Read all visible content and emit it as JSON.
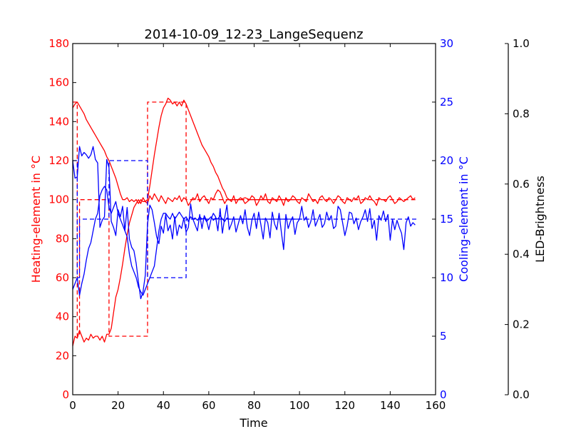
{
  "chart_data": {
    "type": "line",
    "title": "2014-10-09_12-23_LangeSequenz",
    "xlabel": "Time",
    "xlim": [
      0,
      160
    ],
    "xticks": [
      0,
      20,
      40,
      60,
      80,
      100,
      120,
      140,
      160
    ],
    "left_axis": {
      "label": "Heating-element in °C",
      "color": "#ff0000",
      "ylim": [
        0,
        180
      ],
      "ticks": [
        0,
        20,
        40,
        60,
        80,
        100,
        120,
        140,
        160,
        180
      ]
    },
    "right_axis": {
      "label": "Cooling-element in °C",
      "color": "#0000ff",
      "ylim": [
        0,
        30
      ],
      "ticks": [
        0,
        5,
        10,
        15,
        20,
        25,
        30
      ]
    },
    "led_axis": {
      "label": "LED-Brightness",
      "color": "#000000",
      "ylim": [
        0,
        1
      ],
      "ticks": [
        "0.0",
        "0.2",
        "0.4",
        "0.6",
        "0.8",
        "1.0"
      ]
    },
    "series": [
      {
        "axis": "left",
        "style": "dashed",
        "color": "#ff0000",
        "x": [
          0,
          2,
          2,
          3,
          3,
          16,
          16,
          33,
          33,
          50,
          50,
          152
        ],
        "y": [
          150,
          150,
          30,
          30,
          100,
          100,
          30,
          30,
          150,
          150,
          100,
          100
        ]
      },
      {
        "axis": "left",
        "style": "solid",
        "color": "#ff0000",
        "x": [
          0,
          1,
          2,
          3,
          4,
          5,
          6,
          7,
          8,
          9,
          10,
          11,
          12,
          13,
          14,
          15,
          16,
          17,
          18,
          19,
          20,
          21,
          22,
          23,
          24,
          25,
          26,
          27,
          28,
          29,
          30,
          31,
          32,
          33,
          34,
          35,
          36,
          37,
          38,
          39,
          40,
          41,
          42,
          43,
          44,
          45,
          46,
          47,
          48,
          49,
          50,
          51,
          52,
          53,
          54,
          55,
          56,
          57,
          58,
          59,
          60,
          61,
          62,
          63,
          64,
          65,
          66,
          67,
          68,
          69,
          70,
          72,
          74,
          76,
          78,
          80,
          82,
          84,
          86,
          88,
          90,
          92,
          94,
          96,
          98,
          100
        ],
        "y": [
          147,
          149,
          150,
          148,
          146,
          144,
          141,
          139,
          137,
          135,
          133,
          131,
          129,
          127,
          125,
          122,
          120,
          117,
          114,
          111,
          107,
          103,
          100,
          100,
          101,
          99,
          100,
          99,
          100,
          98,
          100,
          99,
          99,
          100,
          107,
          115,
          123,
          130,
          137,
          143,
          147,
          149,
          152,
          151,
          149,
          150,
          148,
          150,
          148,
          151,
          149,
          146,
          143,
          140,
          137,
          134,
          131,
          128,
          126,
          124,
          122,
          119,
          117,
          114,
          112,
          109,
          106,
          104,
          101,
          100,
          100,
          100,
          100,
          101,
          100,
          100,
          100,
          100,
          100,
          100,
          100,
          100,
          100,
          100,
          100,
          100
        ]
      },
      {
        "axis": "left",
        "style": "solid",
        "color": "#ff0000",
        "x": [
          0,
          1,
          2,
          3,
          4,
          5,
          6,
          7,
          8,
          9,
          10,
          11,
          12,
          13,
          14,
          15,
          16,
          17,
          18,
          19,
          20,
          21,
          22,
          23,
          24,
          25,
          26,
          27,
          28,
          29,
          30,
          31,
          32,
          33,
          34,
          35,
          36,
          37,
          38,
          39,
          40,
          41,
          42,
          43,
          44,
          45,
          46,
          47,
          48,
          49,
          50,
          51,
          52,
          53,
          54,
          55,
          56,
          57,
          58,
          59,
          60,
          61,
          62,
          63,
          64,
          65,
          66,
          67,
          68,
          69,
          70,
          71,
          72,
          73,
          74,
          75,
          76,
          77,
          78,
          79,
          80,
          81,
          82,
          83,
          84,
          85,
          86,
          87,
          88,
          89,
          90,
          91,
          92,
          93,
          94,
          95,
          96,
          97,
          98,
          99,
          100,
          101,
          102,
          103,
          104,
          105,
          106,
          107,
          108,
          109,
          110,
          111,
          112,
          113,
          114,
          115,
          116,
          117,
          118,
          119,
          120,
          121,
          122,
          123,
          124,
          125,
          126,
          127,
          128,
          129,
          130,
          131,
          132,
          133,
          134,
          135,
          136,
          137,
          138,
          139,
          140,
          141,
          142,
          143,
          144,
          145,
          146,
          147,
          148,
          149,
          150,
          151
        ],
        "y": [
          25,
          30,
          29,
          33,
          30,
          27,
          29,
          28,
          31,
          29,
          30,
          30,
          28,
          30,
          27,
          31,
          31,
          34,
          42,
          50,
          54,
          60,
          67,
          75,
          82,
          88,
          92,
          96,
          98,
          100,
          98,
          101,
          99,
          98,
          102,
          100,
          103,
          101,
          99,
          102,
          100,
          98,
          101,
          100,
          99,
          101,
          100,
          102,
          99,
          101,
          100,
          97,
          99,
          101,
          100,
          103,
          99,
          101,
          102,
          100,
          98,
          101,
          100,
          103,
          105,
          104,
          101,
          98,
          100,
          100,
          99,
          102,
          98,
          100,
          101,
          100,
          98,
          99,
          100,
          102,
          101,
          97,
          99,
          102,
          100,
          103,
          99,
          98,
          101,
          100,
          99,
          102,
          100,
          97,
          101,
          99,
          100,
          102,
          101,
          99,
          98,
          101,
          100,
          99,
          103,
          101,
          99,
          100,
          98,
          101,
          102,
          100,
          99,
          101,
          100,
          98,
          100,
          102,
          101,
          99,
          98,
          101,
          100,
          99,
          101,
          100,
          102,
          98,
          99,
          101,
          100,
          102,
          100,
          99,
          97,
          101,
          100,
          100,
          99,
          101,
          102,
          100,
          98,
          99,
          101,
          100,
          99,
          100,
          101,
          102,
          100,
          101
        ]
      },
      {
        "axis": "right",
        "style": "dashed",
        "color": "#0000ff",
        "x": [
          0,
          2,
          2,
          3,
          3,
          16,
          16,
          33,
          33,
          50,
          50,
          152
        ],
        "y": [
          20,
          20,
          10,
          10,
          15,
          15,
          20,
          20,
          10,
          10,
          15,
          15
        ]
      },
      {
        "axis": "right",
        "style": "solid",
        "color": "#0000ff",
        "x": [
          0,
          1,
          2,
          3,
          4,
          5,
          6,
          7,
          8,
          9,
          10,
          11,
          12,
          13,
          14,
          15,
          16,
          17,
          18,
          19,
          20,
          21,
          22,
          23,
          24,
          25,
          26,
          27,
          28,
          29,
          30,
          31,
          32,
          33,
          34,
          35,
          36,
          37,
          38,
          39,
          40,
          41,
          42,
          43,
          44,
          45,
          46,
          47,
          48,
          49,
          50,
          51,
          52,
          53,
          54,
          55,
          56,
          57,
          58,
          59,
          60,
          61,
          62,
          63,
          64,
          65,
          66,
          67,
          68,
          69,
          70,
          72,
          74,
          76,
          78,
          80,
          82,
          84,
          86,
          88,
          90,
          92,
          94,
          96,
          98,
          100
        ],
        "y": [
          9,
          9.5,
          10,
          8.5,
          9.5,
          10.3,
          11.5,
          12.5,
          13,
          14,
          15,
          15.5,
          17,
          17.5,
          17.8,
          17.5,
          16,
          15.5,
          16,
          16.5,
          15.5,
          15,
          14.5,
          14,
          13.5,
          12,
          11,
          10.5,
          10,
          9.2,
          8.8,
          8.5,
          9,
          9.5,
          10,
          10.5,
          11,
          12.5,
          14,
          15,
          15.5,
          15.5,
          15.2,
          15,
          15.5,
          15,
          15.3,
          15.6,
          15.3,
          15,
          15.2,
          14.8,
          15.2,
          15,
          15.1,
          14.9,
          15.2,
          15,
          15.1,
          14.8,
          15,
          15.2,
          14.9,
          15.1,
          15,
          15.3,
          15,
          14.8,
          15.1,
          15,
          15,
          15,
          15,
          15,
          15,
          15,
          15,
          15,
          15,
          15,
          15,
          15,
          15,
          15,
          15,
          15
        ]
      },
      {
        "axis": "right",
        "style": "solid",
        "color": "#0000ff",
        "x": [
          0,
          1,
          2,
          3,
          4,
          5,
          6,
          7,
          8,
          9,
          10,
          11,
          12,
          13,
          14,
          15,
          16,
          17,
          18,
          19,
          20,
          21,
          22,
          23,
          24,
          25,
          26,
          27,
          28,
          29,
          30,
          31,
          32,
          33,
          34,
          35,
          36,
          37,
          38,
          39,
          40,
          41,
          42,
          43,
          44,
          45,
          46,
          47,
          48,
          49,
          50,
          51,
          52,
          53,
          54,
          55,
          56,
          57,
          58,
          59,
          60,
          61,
          62,
          63,
          64,
          65,
          66,
          67,
          68,
          69,
          70,
          71,
          72,
          73,
          74,
          75,
          76,
          77,
          78,
          79,
          80,
          81,
          82,
          83,
          84,
          85,
          86,
          87,
          88,
          89,
          90,
          91,
          92,
          93,
          94,
          95,
          96,
          97,
          98,
          99,
          100,
          101,
          102,
          103,
          104,
          105,
          106,
          107,
          108,
          109,
          110,
          111,
          112,
          113,
          114,
          115,
          116,
          117,
          118,
          119,
          120,
          121,
          122,
          123,
          124,
          125,
          126,
          127,
          128,
          129,
          130,
          131,
          132,
          133,
          134,
          135,
          136,
          137,
          138,
          139,
          140,
          141,
          142,
          143,
          144,
          145,
          146,
          147,
          148,
          149,
          150,
          151
        ],
        "y": [
          20,
          18.5,
          18.6,
          21.2,
          20.4,
          20.7,
          20.5,
          20.2,
          20.5,
          21.2,
          20.1,
          19.8,
          14.3,
          14.9,
          15.2,
          20.1,
          19.4,
          14.8,
          14.3,
          13.6,
          15.8,
          15.2,
          16.1,
          14,
          16,
          13.3,
          12.6,
          12.3,
          11.2,
          9.6,
          8.2,
          8.8,
          10.2,
          14.6,
          16.2,
          15.8,
          14.7,
          13.5,
          12.9,
          14.4,
          13.8,
          15.4,
          14,
          14.5,
          13.3,
          15.2,
          13.6,
          14.5,
          14.2,
          15.1,
          13.9,
          14.3,
          16.3,
          15,
          14.5,
          14,
          15.4,
          14.2,
          15.3,
          14.9,
          14.1,
          15,
          15.5,
          15.2,
          14,
          15.9,
          13.8,
          15.1,
          16.2,
          14.1,
          14.6,
          15.2,
          13.9,
          14.6,
          15.3,
          14.6,
          15.8,
          14.3,
          13.6,
          14.9,
          15.5,
          14.2,
          15.6,
          14.5,
          13.3,
          15.1,
          14.7,
          13.4,
          15.6,
          14.6,
          14.1,
          15.5,
          13.9,
          12.4,
          15.4,
          14.2,
          14.8,
          15.2,
          13.7,
          14.7,
          15,
          16.1,
          14.9,
          15.2,
          14.3,
          14.8,
          15.8,
          14.4,
          14.9,
          15.4,
          14.3,
          14.6,
          15.6,
          14.9,
          15.3,
          14.2,
          14.4,
          16.1,
          15.8,
          14.7,
          13.6,
          14.4,
          15.6,
          15.5,
          14.6,
          15.1,
          14.1,
          14.8,
          15.2,
          15.8,
          14.8,
          15.9,
          14.2,
          14.9,
          13.2,
          15.3,
          14.9,
          15.7,
          14.8,
          15.4,
          13.2,
          15,
          14.1,
          14.9,
          14.3,
          13.8,
          12.4,
          14.7,
          15.2,
          14.4,
          14.7,
          14.5
        ]
      }
    ]
  }
}
